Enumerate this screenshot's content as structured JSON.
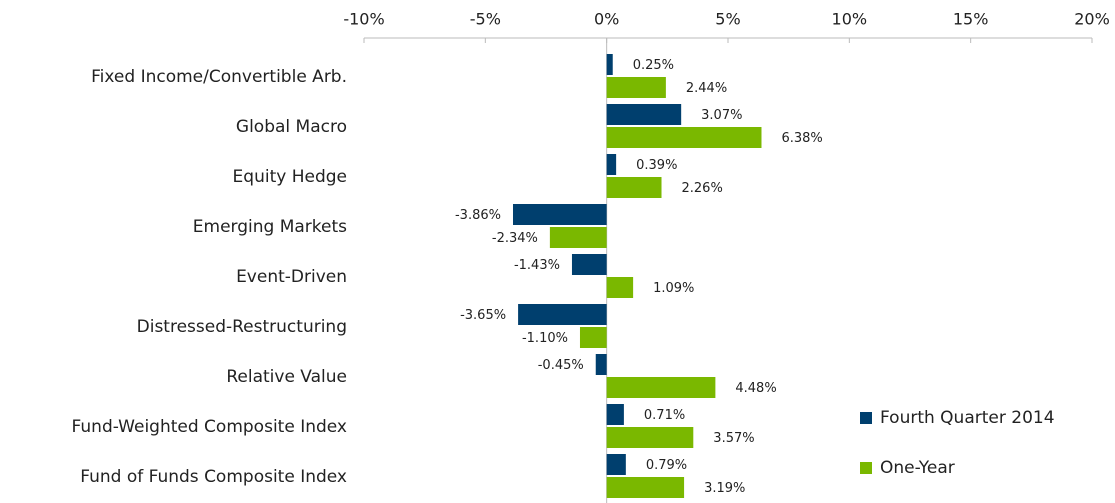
{
  "chart_data": {
    "type": "bar",
    "orientation": "horizontal",
    "categories": [
      "Fixed Income/Convertible Arb.",
      "Global Macro",
      "Equity Hedge",
      "Emerging Markets",
      "Event-Driven",
      "Distressed-Restructuring",
      "Relative Value",
      "Fund-Weighted Composite Index",
      "Fund of Funds Composite Index"
    ],
    "series": [
      {
        "name": "Fourth Quarter 2014",
        "color": "#003f6e",
        "values": [
          0.25,
          3.07,
          0.39,
          -3.86,
          -1.43,
          -3.65,
          -0.45,
          0.71,
          0.79
        ],
        "value_labels": [
          "0.25%",
          "3.07%",
          "0.39%",
          "-3.86%",
          "-1.43%",
          "-3.65%",
          "-0.45%",
          "0.71%",
          "0.79%"
        ]
      },
      {
        "name": "One-Year",
        "color": "#7ab800",
        "values": [
          2.44,
          6.38,
          2.26,
          -2.34,
          1.09,
          -1.1,
          4.48,
          3.57,
          3.19
        ],
        "value_labels": [
          "2.44%",
          "6.38%",
          "2.26%",
          "-2.34%",
          "1.09%",
          "-1.10%",
          "4.48%",
          "3.57%",
          "3.19%"
        ]
      }
    ],
    "xlim": [
      -10,
      20
    ],
    "xticks": [
      {
        "value": -10,
        "label": "-10%"
      },
      {
        "value": -5,
        "label": "-5%"
      },
      {
        "value": 0,
        "label": "0%"
      },
      {
        "value": 5,
        "label": "5%"
      },
      {
        "value": 10,
        "label": "10%"
      },
      {
        "value": 15,
        "label": "15%"
      },
      {
        "value": 20,
        "label": "20%"
      }
    ],
    "legend": "lower right"
  }
}
